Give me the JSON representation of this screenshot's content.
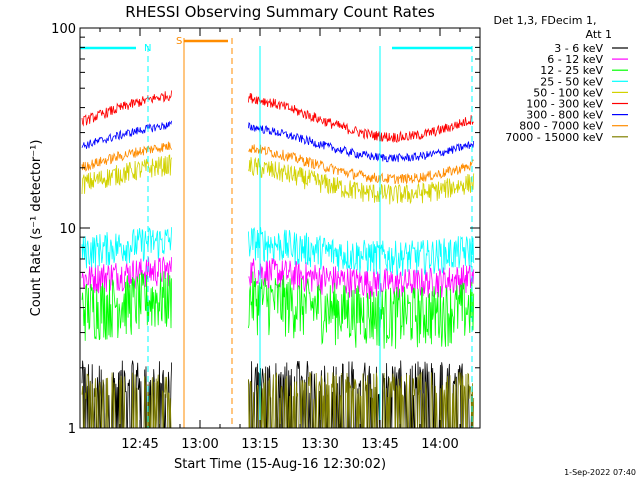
{
  "chart_data": {
    "type": "line",
    "title": "RHESSI Observing Summary Count Rates",
    "xlabel": "Start Time (15-Aug-16 12:30:02)",
    "ylabel": "Count Rate (s⁻¹ detector⁻¹)",
    "y_scale": "log",
    "ylim": [
      1,
      100
    ],
    "xlim": [
      "12:30",
      "14:10"
    ],
    "x_ticks": [
      "12:45",
      "13:00",
      "13:15",
      "13:30",
      "13:45",
      "14:00"
    ],
    "y_tick_labels": [
      "1",
      "10",
      "100"
    ],
    "legend_header": [
      "Det 1,3, FDecim 1,",
      "Att 1"
    ],
    "legend_position": "top-right",
    "timestamp": "1-Sep-2022 07:40",
    "flags": [
      {
        "label": "N",
        "color": "#00ffff"
      },
      {
        "label": "S",
        "color": "#ff8c00"
      }
    ],
    "data_gaps": [
      [
        "12:53",
        "13:12"
      ]
    ],
    "series": [
      {
        "name": "3 - 6 keV",
        "color": "#000000",
        "level": 1.6,
        "noise": 0.45,
        "amp": 0,
        "kind": "spiky"
      },
      {
        "name": "6 - 12 keV",
        "color": "#ff00ff",
        "level": 5.8,
        "noise": 0.18,
        "amp": 0.08,
        "kind": "dense"
      },
      {
        "name": "12 - 25 keV",
        "color": "#00ff00",
        "level": 4.2,
        "noise": 0.35,
        "amp": 0.1,
        "kind": "dense"
      },
      {
        "name": "25 - 50 keV",
        "color": "#00ffff",
        "level": 8.0,
        "noise": 0.2,
        "amp": 0.1,
        "kind": "dense"
      },
      {
        "name": "50 - 100 keV",
        "color": "#d2d200",
        "level": 18.0,
        "noise": 0.12,
        "amp": 0.18,
        "kind": "dense"
      },
      {
        "name": "100 - 300 keV",
        "color": "#ff0000",
        "level": 38.0,
        "noise": 0.06,
        "amp": 0.25,
        "kind": "dense"
      },
      {
        "name": "300 - 800 keV",
        "color": "#0000ff",
        "level": 28.0,
        "noise": 0.05,
        "amp": 0.2,
        "kind": "dense"
      },
      {
        "name": "800 - 7000 keV",
        "color": "#ff8c00",
        "level": 22.0,
        "noise": 0.06,
        "amp": 0.2,
        "kind": "dense"
      },
      {
        "name": "7000 - 15000 keV",
        "color": "#808000",
        "level": 1.5,
        "noise": 0.35,
        "amp": 0,
        "kind": "spiky"
      }
    ]
  }
}
